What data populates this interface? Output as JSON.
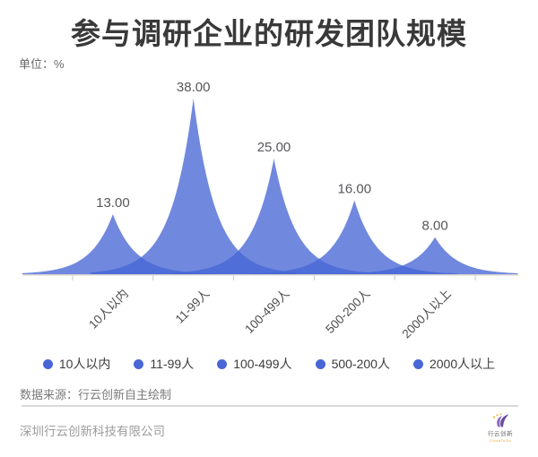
{
  "title": "参与调研企业的研发团队规模",
  "unit_label": "单位：%",
  "chart_data": {
    "type": "area",
    "subtype": "sharp-peak-mountain",
    "title": "参与调研企业的研发团队规模",
    "unit": "%",
    "categories": [
      "10人以内",
      "11-99人",
      "100-499人",
      "500-200人",
      "2000人以上"
    ],
    "values": [
      13,
      38,
      25,
      16,
      8
    ],
    "value_labels": [
      "13.00",
      "38.00",
      "25.00",
      "16.00",
      "8.00"
    ],
    "series_color": "#4866d5",
    "fill_opacity": 0.78,
    "axis_color": "#d2d2d2",
    "tick_color": "#c9c9c9",
    "value_label_color": "#56575a",
    "ylim": [
      0,
      40
    ],
    "grid": false,
    "legend_position": "bottom",
    "x_label_rotation": -45
  },
  "legend": {
    "items": [
      "10人以内",
      "11-99人",
      "100-499人",
      "500-200人",
      "2000人以上"
    ]
  },
  "source_note": "数据来源：行云创新自主绘制",
  "footer": {
    "company": "深圳行云创新科技有限公司",
    "logo": {
      "name": "行云创新",
      "tagline": "CloudToGo",
      "purple": "#6a4ba0",
      "light_purple": "#8a68c0",
      "yellow": "#f0b42e"
    }
  }
}
